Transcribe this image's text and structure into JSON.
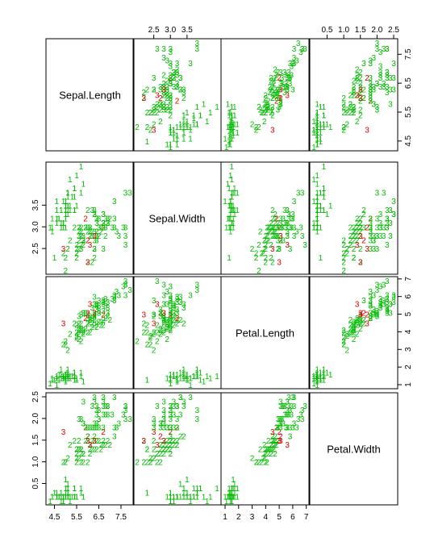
{
  "chart_data": {
    "type": "scatter",
    "variables": [
      "Sepal.Length",
      "Sepal.Width",
      "Petal.Length",
      "Petal.Width"
    ],
    "ranges": [
      [
        4.3,
        7.9
      ],
      [
        2.0,
        4.4
      ],
      [
        1.0,
        6.9
      ],
      [
        0.1,
        2.5
      ]
    ],
    "ticks": [
      [
        4.5,
        5.5,
        6.5,
        7.5
      ],
      [
        2.5,
        3.0,
        3.5
      ],
      [
        1,
        2,
        3,
        4,
        5,
        6,
        7
      ],
      [
        0.5,
        1.0,
        1.5,
        2.0,
        2.5
      ]
    ],
    "tick_labels": [
      [
        "4.5",
        "5.5",
        "6.5",
        "7.5"
      ],
      [
        "2.5",
        "3.0",
        "3.5"
      ],
      [
        "1",
        "2",
        "3",
        "4",
        "5",
        "6",
        "7"
      ],
      [
        "0.5",
        "1.0",
        "1.5",
        "2.0",
        "2.5"
      ]
    ],
    "group_labels": [
      "1",
      "2",
      "3"
    ],
    "group_colors": [
      "#00bb00",
      "#00bb00",
      "#00bb00"
    ],
    "highlight_color": "#dd0000",
    "grid": false,
    "legend": "none",
    "points": [
      [
        5.1,
        3.5,
        1.4,
        0.2,
        1
      ],
      [
        4.9,
        3.0,
        1.4,
        0.2,
        1
      ],
      [
        4.7,
        3.2,
        1.3,
        0.2,
        1
      ],
      [
        4.6,
        3.1,
        1.5,
        0.2,
        1
      ],
      [
        5.0,
        3.6,
        1.4,
        0.2,
        1
      ],
      [
        5.4,
        3.9,
        1.7,
        0.4,
        1
      ],
      [
        4.6,
        3.4,
        1.4,
        0.3,
        1
      ],
      [
        5.0,
        3.4,
        1.5,
        0.2,
        1
      ],
      [
        4.4,
        2.9,
        1.4,
        0.2,
        1
      ],
      [
        4.9,
        3.1,
        1.5,
        0.1,
        1
      ],
      [
        5.4,
        3.7,
        1.5,
        0.2,
        1
      ],
      [
        4.8,
        3.4,
        1.6,
        0.2,
        1
      ],
      [
        4.8,
        3.0,
        1.4,
        0.1,
        1
      ],
      [
        4.3,
        3.0,
        1.1,
        0.1,
        1
      ],
      [
        5.8,
        4.0,
        1.2,
        0.2,
        1
      ],
      [
        5.7,
        4.4,
        1.5,
        0.4,
        1
      ],
      [
        5.4,
        3.9,
        1.3,
        0.4,
        1
      ],
      [
        5.1,
        3.5,
        1.4,
        0.3,
        1
      ],
      [
        5.7,
        3.8,
        1.7,
        0.3,
        1
      ],
      [
        5.1,
        3.8,
        1.5,
        0.3,
        1
      ],
      [
        5.4,
        3.4,
        1.7,
        0.2,
        1
      ],
      [
        5.1,
        3.7,
        1.5,
        0.4,
        1
      ],
      [
        4.6,
        3.6,
        1.0,
        0.2,
        1
      ],
      [
        5.1,
        3.3,
        1.7,
        0.5,
        1
      ],
      [
        4.8,
        3.4,
        1.9,
        0.2,
        1
      ],
      [
        5.0,
        3.0,
        1.6,
        0.2,
        1
      ],
      [
        5.0,
        3.4,
        1.6,
        0.4,
        1
      ],
      [
        5.2,
        3.5,
        1.5,
        0.2,
        1
      ],
      [
        5.2,
        3.4,
        1.4,
        0.2,
        1
      ],
      [
        4.7,
        3.2,
        1.6,
        0.2,
        1
      ],
      [
        4.8,
        3.1,
        1.6,
        0.2,
        1
      ],
      [
        5.4,
        3.4,
        1.5,
        0.4,
        1
      ],
      [
        5.2,
        4.1,
        1.5,
        0.1,
        1
      ],
      [
        5.5,
        4.2,
        1.4,
        0.2,
        1
      ],
      [
        4.9,
        3.1,
        1.5,
        0.2,
        1
      ],
      [
        5.0,
        3.2,
        1.2,
        0.2,
        1
      ],
      [
        5.5,
        3.5,
        1.3,
        0.2,
        1
      ],
      [
        4.9,
        3.6,
        1.4,
        0.1,
        1
      ],
      [
        4.4,
        3.0,
        1.3,
        0.2,
        1
      ],
      [
        5.1,
        3.4,
        1.5,
        0.2,
        1
      ],
      [
        5.0,
        3.5,
        1.3,
        0.3,
        1
      ],
      [
        4.5,
        2.3,
        1.3,
        0.3,
        1
      ],
      [
        4.4,
        3.2,
        1.3,
        0.2,
        1
      ],
      [
        5.0,
        3.5,
        1.6,
        0.6,
        1
      ],
      [
        5.1,
        3.8,
        1.9,
        0.4,
        1
      ],
      [
        4.8,
        3.0,
        1.4,
        0.3,
        1
      ],
      [
        5.1,
        3.8,
        1.6,
        0.2,
        1
      ],
      [
        4.6,
        3.2,
        1.4,
        0.2,
        1
      ],
      [
        5.3,
        3.7,
        1.5,
        0.2,
        1
      ],
      [
        5.0,
        3.3,
        1.4,
        0.2,
        1
      ],
      [
        7.0,
        3.2,
        4.7,
        1.4,
        2
      ],
      [
        6.4,
        3.2,
        4.5,
        1.5,
        2
      ],
      [
        6.9,
        3.1,
        4.9,
        1.5,
        2
      ],
      [
        5.5,
        2.3,
        4.0,
        1.3,
        2
      ],
      [
        6.5,
        2.8,
        4.6,
        1.5,
        2
      ],
      [
        5.7,
        2.8,
        4.5,
        1.3,
        2
      ],
      [
        6.3,
        3.3,
        4.7,
        1.6,
        2
      ],
      [
        4.9,
        2.4,
        3.3,
        1.0,
        2
      ],
      [
        6.6,
        2.9,
        4.6,
        1.3,
        2
      ],
      [
        5.2,
        2.7,
        3.9,
        1.4,
        2
      ],
      [
        5.0,
        2.0,
        3.5,
        1.0,
        2
      ],
      [
        5.9,
        3.0,
        4.2,
        1.5,
        2
      ],
      [
        6.0,
        2.2,
        4.0,
        1.0,
        2
      ],
      [
        6.1,
        2.9,
        4.7,
        1.4,
        2
      ],
      [
        5.6,
        2.9,
        3.6,
        1.3,
        2
      ],
      [
        6.7,
        3.1,
        4.4,
        1.4,
        2
      ],
      [
        5.6,
        3.0,
        4.5,
        1.5,
        2
      ],
      [
        5.8,
        2.7,
        4.1,
        1.0,
        2
      ],
      [
        6.2,
        2.2,
        4.5,
        1.5,
        2
      ],
      [
        5.6,
        2.5,
        3.9,
        1.1,
        2
      ],
      [
        5.9,
        3.2,
        4.8,
        1.8,
        2
      ],
      [
        6.1,
        2.8,
        4.0,
        1.3,
        2
      ],
      [
        6.3,
        2.5,
        4.9,
        1.5,
        2
      ],
      [
        6.1,
        2.8,
        4.7,
        1.2,
        2
      ],
      [
        6.4,
        2.9,
        4.3,
        1.3,
        2
      ],
      [
        6.6,
        3.0,
        4.4,
        1.4,
        2
      ],
      [
        6.8,
        2.8,
        4.8,
        1.4,
        2
      ],
      [
        6.7,
        3.0,
        5.0,
        1.7,
        2
      ],
      [
        6.0,
        2.9,
        4.5,
        1.5,
        2
      ],
      [
        5.7,
        2.6,
        3.5,
        1.0,
        2
      ],
      [
        5.5,
        2.4,
        3.8,
        1.1,
        2
      ],
      [
        5.5,
        2.4,
        3.7,
        1.0,
        2
      ],
      [
        5.8,
        2.7,
        3.9,
        1.2,
        2
      ],
      [
        6.0,
        2.7,
        5.1,
        1.6,
        2
      ],
      [
        5.4,
        3.0,
        4.5,
        1.5,
        2
      ],
      [
        6.0,
        3.4,
        4.5,
        1.6,
        2
      ],
      [
        6.7,
        3.1,
        4.7,
        1.5,
        2
      ],
      [
        6.3,
        2.3,
        4.4,
        1.3,
        2
      ],
      [
        5.6,
        3.0,
        4.1,
        1.3,
        2
      ],
      [
        5.5,
        2.5,
        4.0,
        1.3,
        2
      ],
      [
        5.5,
        2.6,
        4.4,
        1.2,
        2
      ],
      [
        6.1,
        3.0,
        4.6,
        1.4,
        2
      ],
      [
        5.8,
        2.6,
        4.0,
        1.2,
        2
      ],
      [
        5.0,
        2.3,
        3.3,
        1.0,
        2
      ],
      [
        5.6,
        2.7,
        4.2,
        1.3,
        2
      ],
      [
        5.7,
        3.0,
        4.2,
        1.2,
        2
      ],
      [
        5.7,
        2.9,
        4.2,
        1.3,
        2
      ],
      [
        6.2,
        2.9,
        4.3,
        1.3,
        2
      ],
      [
        5.1,
        2.5,
        3.0,
        1.1,
        2
      ],
      [
        5.7,
        2.8,
        4.1,
        1.3,
        2
      ],
      [
        6.3,
        3.3,
        6.0,
        2.5,
        3
      ],
      [
        5.8,
        2.7,
        5.1,
        1.9,
        3
      ],
      [
        7.1,
        3.0,
        5.9,
        2.1,
        3
      ],
      [
        6.3,
        2.9,
        5.6,
        1.8,
        3
      ],
      [
        6.5,
        3.0,
        5.8,
        2.2,
        3
      ],
      [
        7.6,
        3.0,
        6.6,
        2.1,
        3
      ],
      [
        4.9,
        2.5,
        4.5,
        1.7,
        3
      ],
      [
        7.3,
        2.9,
        6.3,
        1.8,
        3
      ],
      [
        6.7,
        2.5,
        5.8,
        1.8,
        3
      ],
      [
        7.2,
        3.6,
        6.1,
        2.5,
        3
      ],
      [
        6.5,
        3.2,
        5.1,
        2.0,
        3
      ],
      [
        6.4,
        2.7,
        5.3,
        1.9,
        3
      ],
      [
        6.8,
        3.0,
        5.5,
        2.1,
        3
      ],
      [
        5.7,
        2.5,
        5.0,
        2.0,
        3
      ],
      [
        5.8,
        2.8,
        5.1,
        2.4,
        3
      ],
      [
        6.4,
        3.2,
        5.3,
        2.3,
        3
      ],
      [
        6.5,
        3.0,
        5.5,
        1.8,
        3
      ],
      [
        7.7,
        3.8,
        6.7,
        2.2,
        3
      ],
      [
        7.7,
        2.6,
        6.9,
        2.3,
        3
      ],
      [
        6.0,
        2.2,
        5.0,
        1.5,
        3
      ],
      [
        6.9,
        3.2,
        5.7,
        2.3,
        3
      ],
      [
        5.6,
        2.8,
        4.9,
        2.0,
        3
      ],
      [
        7.7,
        2.8,
        6.7,
        2.0,
        3
      ],
      [
        6.3,
        2.7,
        4.9,
        1.8,
        3
      ],
      [
        6.7,
        3.3,
        5.7,
        2.1,
        3
      ],
      [
        7.2,
        3.2,
        6.0,
        1.8,
        3
      ],
      [
        6.2,
        2.8,
        4.8,
        1.8,
        3
      ],
      [
        6.1,
        3.0,
        4.9,
        1.8,
        3
      ],
      [
        6.4,
        2.8,
        5.6,
        2.1,
        3
      ],
      [
        7.2,
        3.0,
        5.8,
        1.6,
        3
      ],
      [
        7.4,
        2.8,
        6.1,
        1.9,
        3
      ],
      [
        7.9,
        3.8,
        6.4,
        2.0,
        3
      ],
      [
        6.4,
        2.8,
        5.6,
        2.2,
        3
      ],
      [
        6.3,
        2.8,
        5.1,
        1.5,
        3
      ],
      [
        6.1,
        2.6,
        5.6,
        1.4,
        3
      ],
      [
        7.7,
        3.0,
        6.1,
        2.3,
        3
      ],
      [
        6.3,
        3.4,
        5.6,
        2.4,
        3
      ],
      [
        6.4,
        3.1,
        5.5,
        1.8,
        3
      ],
      [
        6.0,
        3.0,
        4.8,
        1.8,
        3
      ],
      [
        6.9,
        3.1,
        5.4,
        2.1,
        3
      ],
      [
        6.7,
        3.1,
        5.6,
        2.4,
        3
      ],
      [
        6.9,
        3.1,
        5.1,
        2.3,
        3
      ],
      [
        5.8,
        2.7,
        5.1,
        1.9,
        3
      ],
      [
        6.8,
        3.2,
        5.9,
        2.3,
        3
      ],
      [
        6.7,
        3.3,
        5.7,
        2.5,
        3
      ],
      [
        6.7,
        3.0,
        5.2,
        2.3,
        3
      ],
      [
        6.3,
        2.5,
        5.0,
        1.9,
        3
      ],
      [
        6.5,
        3.0,
        5.2,
        2.0,
        3
      ],
      [
        6.2,
        3.4,
        5.4,
        2.3,
        3
      ],
      [
        5.9,
        3.0,
        5.1,
        1.8,
        3
      ]
    ],
    "highlighted": [
      70,
      77,
      83,
      106,
      119,
      133,
      134
    ]
  }
}
